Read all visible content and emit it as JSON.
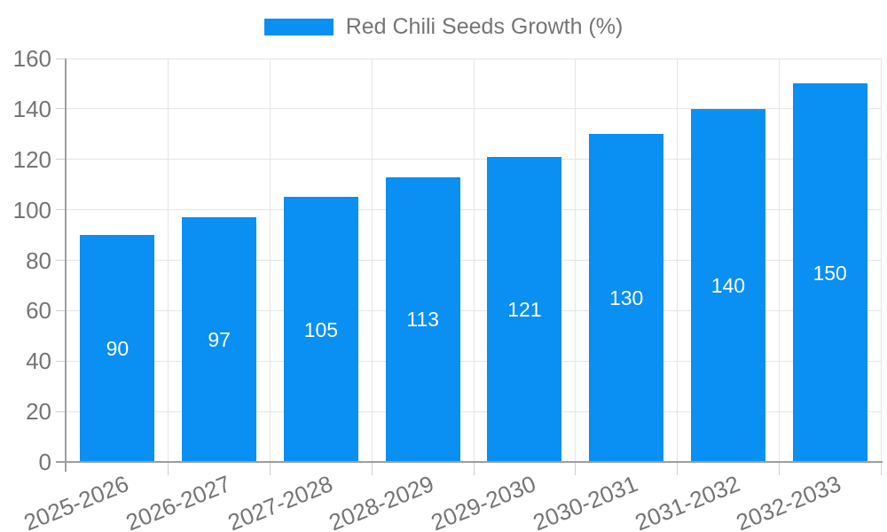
{
  "legend": {
    "items": [
      {
        "label": "Red Chili Seeds Growth (%)",
        "color": "#0A8FF2"
      }
    ]
  },
  "chart_data": {
    "type": "bar",
    "categories": [
      "2025-2026",
      "2026-2027",
      "2027-2028",
      "2028-2029",
      "2029-2030",
      "2030-2031",
      "2031-2032",
      "2032-2033"
    ],
    "series": [
      {
        "name": "Red Chili Seeds Growth (%)",
        "values": [
          90,
          97,
          105,
          113,
          121,
          130,
          140,
          150
        ],
        "color": "#0A8FF2"
      }
    ],
    "value_labels": [
      90,
      97,
      105,
      113,
      121,
      130,
      140,
      150
    ],
    "ylim": [
      0,
      160
    ],
    "ytick_step": 20,
    "ytick_labels": [
      "0",
      "20",
      "40",
      "60",
      "80",
      "100",
      "120",
      "140",
      "160"
    ],
    "grid": "both",
    "legend_position": "top-center",
    "x_label_rotation_deg": -22,
    "colors": {
      "bar": "#0A8FF2",
      "value_label": "#FFFFFF",
      "axis": "#9E9E9E",
      "grid": "#E5E5E5",
      "tick": "#CFCFCF",
      "text": "#757575"
    }
  }
}
